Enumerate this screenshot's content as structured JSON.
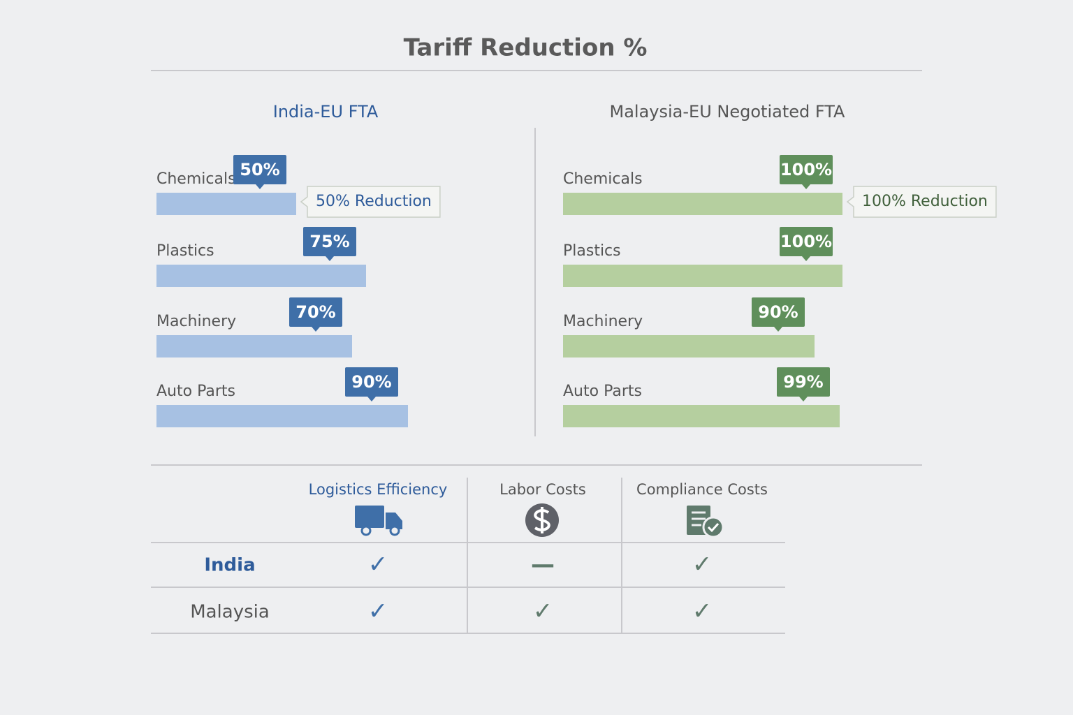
{
  "title": "Tariff Reduction %",
  "chart_data": [
    {
      "type": "hbar",
      "title": "India-EU FTA",
      "title_color": "#2e5b9a",
      "categories": [
        "Chemicals",
        "Plastics",
        "Machinery",
        "Auto Parts"
      ],
      "values": [
        50,
        75,
        70,
        90
      ],
      "value_labels": [
        "50%",
        "75%",
        "70%",
        "90%"
      ],
      "xlim": [
        0,
        100
      ],
      "color": "#a7c1e3",
      "label_color": "#3f6fa8",
      "annotation": "50% Reduction",
      "annotation_color": "#2e5b9a"
    },
    {
      "type": "hbar",
      "title": "Malaysia-EU Negotiated FTA",
      "title_color": "#555555",
      "categories": [
        "Chemicals",
        "Plastics",
        "Machinery",
        "Auto Parts"
      ],
      "values": [
        100,
        100,
        90,
        99
      ],
      "value_labels": [
        "100%",
        "100%",
        "90%",
        "99%"
      ],
      "xlim": [
        0,
        100
      ],
      "color": "#b5cf9f",
      "label_color": "#5f8f5b",
      "annotation": "100% Reduction",
      "annotation_color": "#3f5f3a"
    }
  ],
  "table": {
    "columns": [
      "Logistics Efficiency",
      "Labor Costs",
      "Compliance Costs"
    ],
    "rows": [
      {
        "label": "India",
        "cells": [
          "✓",
          "—",
          "✓"
        ]
      },
      {
        "label": "Malaysia",
        "cells": [
          "✓",
          "✓",
          "✓"
        ]
      }
    ]
  }
}
